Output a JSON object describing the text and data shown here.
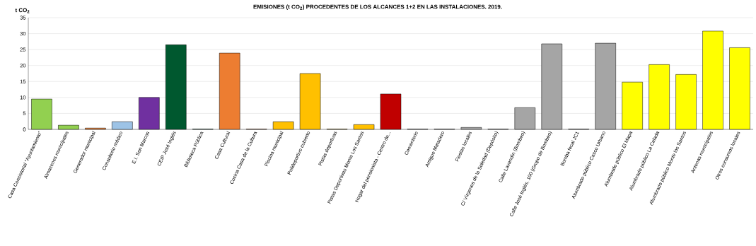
{
  "chart_data": {
    "type": "bar",
    "title": "EMISIONES (t CO$_{2}$) PROCEDENTES DE LOS ALCANCES 1+2 EN LAS INSTALACIONES. 2019.",
    "ylabel": "t CO$_{2}$",
    "categories": [
      "Casa Consistorial \"Ayuntamiento\"",
      "Almacenes municipales",
      "Generador municipal",
      "Consultorio médico",
      "E.I. San Marcos",
      "CEIP José Inglés",
      "Biblioteca Pública",
      "Casa Cultural",
      "Cocina Casa de la Cultura",
      "Piscina municipal",
      "Polideportivo cubierto",
      "Pistas deportivas",
      "Pistas Deportivas Monte Los Santos",
      "Hogar del pensionista - Centro de...",
      "Cementerio",
      "Antiguo Matadero",
      "Fiestas locales",
      "C/ Vírgenes de la Soledad (Depósito)",
      "Calle Lavandín (Bombeo)",
      "Calle José Inglés, 100 (Grupo de Bombeo)",
      "Bomba fecal JC1",
      "Alumbrado público Casco Urbano",
      "Alumbrado público El Mapa",
      "Alumbrado público La Celada",
      "Alumbrado público Monte los Santos",
      "Antenas municipales",
      "Otros consumos locales"
    ],
    "values": [
      9.5,
      1.3,
      0.4,
      2.4,
      10,
      26.5,
      0.1,
      23.9,
      0.1,
      2.4,
      17.5,
      0.1,
      1.5,
      11.1,
      0.1,
      0.1,
      0.6,
      0.1,
      6.8,
      26.8,
      0.1,
      27,
      14.8,
      20.3,
      17.2,
      30.8,
      25.6
    ],
    "colors": [
      "#92d050",
      "#92d050",
      "#ed7d31",
      "#9dc3e6",
      "#7030a0",
      "#00582f",
      "#00582f",
      "#ed7d31",
      "#ed7d31",
      "#ffc000",
      "#ffc000",
      "#ffc000",
      "#ffc000",
      "#c00000",
      "#a5a5a5",
      "#a5a5a5",
      "#a5a5a5",
      "#a5a5a5",
      "#a5a5a5",
      "#a5a5a5",
      "#a5a5a5",
      "#a5a5a5",
      "#ffff00",
      "#ffff00",
      "#ffff00",
      "#ffff00",
      "#ffff00"
    ],
    "ylim": [
      0,
      35
    ],
    "yticks": [
      0,
      5,
      10,
      15,
      20,
      25,
      30,
      35
    ],
    "grid": "y"
  }
}
